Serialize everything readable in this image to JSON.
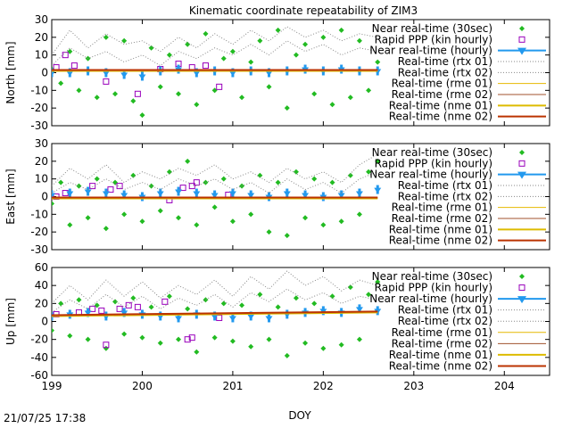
{
  "title": "Kinematic coordinate repeatability of ZIM3",
  "xlabel": "DOY",
  "footer_timestamp": "21/07/25 17:38",
  "colors": {
    "near_30s": "#22bb22",
    "rapid_ppp": "#9900bb",
    "near_hourly": "#2299ee",
    "rtx": "#888888",
    "rme01": "#e6b800",
    "rme02": "#a0522d",
    "nme01": "#ddbb00",
    "nme02": "#bb3300"
  },
  "chart_data": [
    {
      "type": "scatter",
      "panel": "north",
      "ylabel": "North [mm]",
      "xlim": [
        199,
        204.5
      ],
      "ylim": [
        -30,
        30
      ],
      "xticks": [
        199,
        200,
        201,
        202,
        203,
        204
      ],
      "yticks": [
        -30,
        -20,
        -10,
        0,
        10,
        20,
        30
      ],
      "legend": "top-right",
      "series": [
        {
          "name": "Near real-time (30sec)",
          "style": "points",
          "x": [
            199.0,
            199.1,
            199.2,
            199.3,
            199.4,
            199.5,
            199.6,
            199.7,
            199.8,
            199.9,
            200.0,
            200.1,
            200.2,
            200.3,
            200.4,
            200.5,
            200.6,
            200.7,
            200.8,
            200.9,
            201.0,
            201.1,
            201.2,
            201.3,
            201.4,
            201.5,
            201.6,
            201.7,
            201.8,
            201.9,
            202.0,
            202.1,
            202.2,
            202.3,
            202.4,
            202.5,
            202.6
          ],
          "y": [
            2,
            -6,
            12,
            -10,
            8,
            -14,
            20,
            -12,
            18,
            -16,
            -24,
            14,
            -8,
            10,
            -12,
            16,
            -18,
            22,
            -10,
            8,
            12,
            -14,
            6,
            18,
            -8,
            24,
            -20,
            10,
            16,
            -12,
            20,
            -18,
            24,
            -14,
            18,
            -10,
            6
          ]
        },
        {
          "name": "Rapid PPP (kin hourly)",
          "style": "squares",
          "x": [
            199.05,
            199.15,
            199.25,
            199.6,
            199.95,
            200.2,
            200.4,
            200.55,
            200.7,
            200.85
          ],
          "y": [
            3,
            10,
            4,
            -5,
            -12,
            2,
            5,
            3,
            4,
            -8
          ]
        },
        {
          "name": "Near real-time (hourly)",
          "style": "errorbars",
          "x": [
            199.0,
            199.2,
            199.4,
            199.6,
            199.8,
            200.0,
            200.2,
            200.4,
            200.6,
            200.8,
            201.0,
            201.2,
            201.4,
            201.6,
            201.8,
            202.0,
            202.2,
            202.4,
            202.6
          ],
          "y": [
            0,
            0,
            1,
            0,
            -1,
            -2,
            1,
            2,
            0,
            1,
            0,
            1,
            0,
            1,
            2,
            1,
            2,
            1,
            1
          ]
        },
        {
          "name": "Real-time (rtx 01)",
          "style": "dotted",
          "x": [
            199.0,
            199.2,
            199.4,
            199.6,
            199.8,
            200.0,
            200.2,
            200.4,
            200.6,
            200.8,
            201.0,
            201.2,
            201.4,
            201.6,
            201.8,
            202.0,
            202.2,
            202.4,
            202.6
          ],
          "y": [
            10,
            24,
            14,
            22,
            16,
            18,
            12,
            20,
            14,
            22,
            16,
            24,
            18,
            26,
            20,
            24,
            18,
            22,
            20
          ]
        },
        {
          "name": "Real-time (rtx 02)",
          "style": "dotted",
          "x": [
            199.0,
            199.2,
            199.4,
            199.6,
            199.8,
            200.0,
            200.2,
            200.4,
            200.6,
            200.8,
            201.0,
            201.2,
            201.4,
            201.6,
            201.8,
            202.0,
            202.2,
            202.4,
            202.6
          ],
          "y": [
            4,
            14,
            8,
            12,
            6,
            10,
            4,
            12,
            8,
            14,
            10,
            16,
            10,
            18,
            12,
            16,
            10,
            14,
            12
          ]
        },
        {
          "name": "Real-time (rme 01)",
          "style": "line",
          "x": [
            199.0,
            202.6
          ],
          "y": [
            1,
            1
          ]
        },
        {
          "name": "Real-time (rme 02)",
          "style": "line",
          "x": [
            199.0,
            202.6
          ],
          "y": [
            1.5,
            1.5
          ]
        },
        {
          "name": "Real-time (nme 01)",
          "style": "line-thick",
          "x": [
            199.0,
            202.6
          ],
          "y": [
            1,
            1
          ]
        },
        {
          "name": "Real-time (nme 02)",
          "style": "line-thick",
          "x": [
            199.0,
            202.6
          ],
          "y": [
            1.5,
            1.5
          ]
        }
      ]
    },
    {
      "type": "scatter",
      "panel": "east",
      "ylabel": "East [mm]",
      "xlim": [
        199,
        204.5
      ],
      "ylim": [
        -30,
        30
      ],
      "xticks": [
        199,
        200,
        201,
        202,
        203,
        204
      ],
      "yticks": [
        -30,
        -20,
        -10,
        0,
        10,
        20,
        30
      ],
      "legend": "top-right",
      "series": [
        {
          "name": "Near real-time (30sec)",
          "style": "points",
          "x": [
            199.0,
            199.1,
            199.2,
            199.3,
            199.4,
            199.5,
            199.6,
            199.7,
            199.8,
            199.9,
            200.0,
            200.1,
            200.2,
            200.3,
            200.4,
            200.5,
            200.6,
            200.7,
            200.8,
            200.9,
            201.0,
            201.1,
            201.2,
            201.3,
            201.4,
            201.5,
            201.6,
            201.7,
            201.8,
            201.9,
            202.0,
            202.1,
            202.2,
            202.3,
            202.4,
            202.5,
            202.6
          ],
          "y": [
            -4,
            8,
            -16,
            6,
            -12,
            10,
            -18,
            8,
            -10,
            12,
            -14,
            6,
            -8,
            14,
            -12,
            20,
            -16,
            8,
            -6,
            10,
            -14,
            6,
            -10,
            12,
            -20,
            8,
            -22,
            14,
            -12,
            10,
            -16,
            8,
            -14,
            12,
            -10,
            14,
            20
          ]
        },
        {
          "name": "Rapid PPP (kin hourly)",
          "style": "squares",
          "x": [
            199.05,
            199.15,
            199.45,
            199.65,
            199.75,
            200.3,
            200.45,
            200.55,
            200.6,
            200.95
          ],
          "y": [
            0,
            2,
            6,
            4,
            6,
            -2,
            5,
            6,
            8,
            1
          ]
        },
        {
          "name": "Near real-time (hourly)",
          "style": "errorbars",
          "x": [
            199.0,
            199.2,
            199.4,
            199.6,
            199.8,
            200.0,
            200.2,
            200.4,
            200.6,
            200.8,
            201.0,
            201.2,
            201.4,
            201.6,
            201.8,
            202.0,
            202.2,
            202.4,
            202.6
          ],
          "y": [
            1,
            2,
            3,
            2,
            1,
            0,
            2,
            3,
            2,
            1,
            2,
            1,
            0,
            2,
            1,
            0,
            1,
            2,
            4
          ]
        },
        {
          "name": "Real-time (rtx 01)",
          "style": "dotted",
          "x": [
            199.0,
            199.2,
            199.4,
            199.6,
            199.8,
            200.0,
            200.2,
            200.4,
            200.6,
            200.8,
            201.0,
            201.2,
            201.4,
            201.6,
            201.8,
            202.0,
            202.2,
            202.4,
            202.6
          ],
          "y": [
            6,
            16,
            10,
            18,
            8,
            14,
            10,
            16,
            12,
            18,
            10,
            14,
            8,
            16,
            10,
            14,
            8,
            18,
            24
          ]
        },
        {
          "name": "Real-time (rtx 02)",
          "style": "dotted",
          "x": [
            199.0,
            199.2,
            199.4,
            199.6,
            199.8,
            200.0,
            200.2,
            200.4,
            200.6,
            200.8,
            201.0,
            201.2,
            201.4,
            201.6,
            201.8,
            202.0,
            202.2,
            202.4,
            202.6
          ],
          "y": [
            2,
            8,
            4,
            10,
            4,
            8,
            4,
            10,
            6,
            10,
            4,
            8,
            2,
            10,
            4,
            8,
            2,
            10,
            14
          ]
        },
        {
          "name": "Real-time (rme 01)",
          "style": "line",
          "x": [
            199.0,
            202.6
          ],
          "y": [
            -1,
            -1
          ]
        },
        {
          "name": "Real-time (rme 02)",
          "style": "line",
          "x": [
            199.0,
            202.6
          ],
          "y": [
            -0.5,
            -0.5
          ]
        },
        {
          "name": "Real-time (nme 01)",
          "style": "line-thick",
          "x": [
            199.0,
            202.6
          ],
          "y": [
            -1,
            -1
          ]
        },
        {
          "name": "Real-time (nme 02)",
          "style": "line-thick",
          "x": [
            199.0,
            202.6
          ],
          "y": [
            -0.5,
            -0.5
          ]
        }
      ]
    },
    {
      "type": "scatter",
      "panel": "up",
      "ylabel": "Up [mm]",
      "xlim": [
        199,
        204.5
      ],
      "ylim": [
        -60,
        60
      ],
      "xticks": [
        199,
        200,
        201,
        202,
        203,
        204
      ],
      "yticks": [
        -60,
        -40,
        -20,
        0,
        20,
        40,
        60
      ],
      "legend": "top-right",
      "series": [
        {
          "name": "Near real-time (30sec)",
          "style": "points",
          "x": [
            199.0,
            199.1,
            199.2,
            199.3,
            199.4,
            199.5,
            199.6,
            199.7,
            199.8,
            199.9,
            200.0,
            200.1,
            200.2,
            200.3,
            200.4,
            200.5,
            200.6,
            200.7,
            200.8,
            200.9,
            201.0,
            201.1,
            201.2,
            201.3,
            201.4,
            201.5,
            201.6,
            201.7,
            201.8,
            201.9,
            202.0,
            202.1,
            202.2,
            202.3,
            202.4,
            202.5,
            202.6
          ],
          "y": [
            -10,
            20,
            -16,
            24,
            -20,
            18,
            -30,
            22,
            -14,
            26,
            -18,
            16,
            -24,
            28,
            -20,
            14,
            -34,
            24,
            -18,
            20,
            -22,
            18,
            -28,
            30,
            -20,
            16,
            -38,
            26,
            -24,
            20,
            -30,
            28,
            -26,
            38,
            -20,
            30,
            44
          ]
        },
        {
          "name": "Rapid PPP (kin hourly)",
          "style": "squares",
          "x": [
            199.05,
            199.3,
            199.45,
            199.55,
            199.6,
            199.75,
            199.85,
            199.95,
            200.25,
            200.5,
            200.55,
            200.85
          ],
          "y": [
            8,
            10,
            14,
            12,
            -26,
            14,
            18,
            16,
            22,
            -20,
            -18,
            4
          ]
        },
        {
          "name": "Near real-time (hourly)",
          "style": "errorbars",
          "x": [
            199.0,
            199.2,
            199.4,
            199.6,
            199.8,
            200.0,
            200.2,
            200.4,
            200.6,
            200.8,
            201.0,
            201.2,
            201.4,
            201.6,
            201.8,
            202.0,
            202.2,
            202.4,
            202.6
          ],
          "y": [
            6,
            8,
            10,
            6,
            10,
            8,
            6,
            4,
            8,
            6,
            4,
            6,
            4,
            8,
            10,
            12,
            10,
            14,
            12
          ]
        },
        {
          "name": "Real-time (rtx 01)",
          "style": "dotted",
          "x": [
            199.0,
            199.2,
            199.4,
            199.6,
            199.8,
            200.0,
            200.2,
            200.4,
            200.6,
            200.8,
            201.0,
            201.2,
            201.4,
            201.6,
            201.8,
            202.0,
            202.2,
            202.4,
            202.6
          ],
          "y": [
            20,
            40,
            24,
            46,
            28,
            44,
            26,
            40,
            30,
            46,
            28,
            50,
            36,
            56,
            40,
            50,
            34,
            46,
            40
          ]
        },
        {
          "name": "Real-time (rtx 02)",
          "style": "dotted",
          "x": [
            199.0,
            199.2,
            199.4,
            199.6,
            199.8,
            200.0,
            200.2,
            200.4,
            200.6,
            200.8,
            201.0,
            201.2,
            201.4,
            201.6,
            201.8,
            202.0,
            202.2,
            202.4,
            202.6
          ],
          "y": [
            10,
            24,
            14,
            30,
            16,
            28,
            14,
            26,
            18,
            30,
            16,
            32,
            22,
            36,
            24,
            32,
            20,
            28,
            24
          ]
        },
        {
          "name": "Real-time (rme 01)",
          "style": "line",
          "x": [
            199.0,
            202.6
          ],
          "y": [
            6,
            10
          ]
        },
        {
          "name": "Real-time (rme 02)",
          "style": "line",
          "x": [
            199.0,
            202.6
          ],
          "y": [
            7,
            11
          ]
        },
        {
          "name": "Real-time (nme 01)",
          "style": "line-thick",
          "x": [
            199.0,
            202.6
          ],
          "y": [
            6,
            10
          ]
        },
        {
          "name": "Real-time (nme 02)",
          "style": "line-thick",
          "x": [
            199.0,
            202.6
          ],
          "y": [
            7,
            11
          ]
        }
      ]
    }
  ]
}
